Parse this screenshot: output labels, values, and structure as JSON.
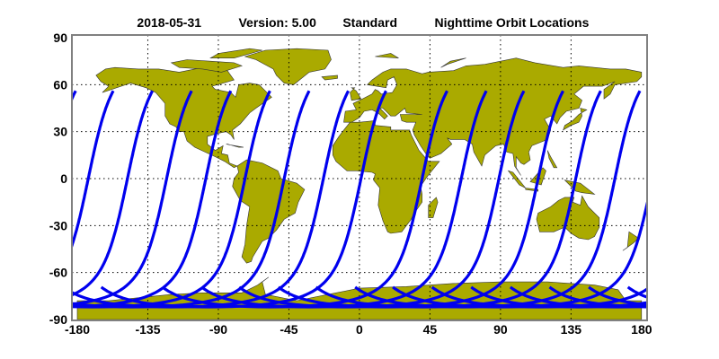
{
  "chart_data": {
    "type": "map",
    "title": {
      "date": "2018-05-31",
      "version": "Version: 5.00",
      "mode": "Standard",
      "name": "Nighttime Orbit Locations"
    },
    "projection": "equirectangular",
    "xlim": [
      -180,
      180
    ],
    "ylim": [
      -90,
      90
    ],
    "xticks": [
      "-180",
      "-135",
      "-90",
      "-45",
      "0",
      "45",
      "90",
      "135",
      "180"
    ],
    "yticks": [
      "90",
      "60",
      "30",
      "0",
      "-30",
      "-60",
      "-90"
    ],
    "grid": true,
    "orbits": {
      "equator_crossing_longitudes": [
        -173,
        -148,
        -123,
        -98,
        -73,
        -48,
        -23,
        1,
        40,
        65,
        89,
        114,
        138,
        163
      ],
      "max_latitude": 56,
      "min_latitude": -82
    },
    "colors": {
      "land": "#aaaa00",
      "orbit": "#0000ee",
      "frame": "#808080"
    }
  }
}
